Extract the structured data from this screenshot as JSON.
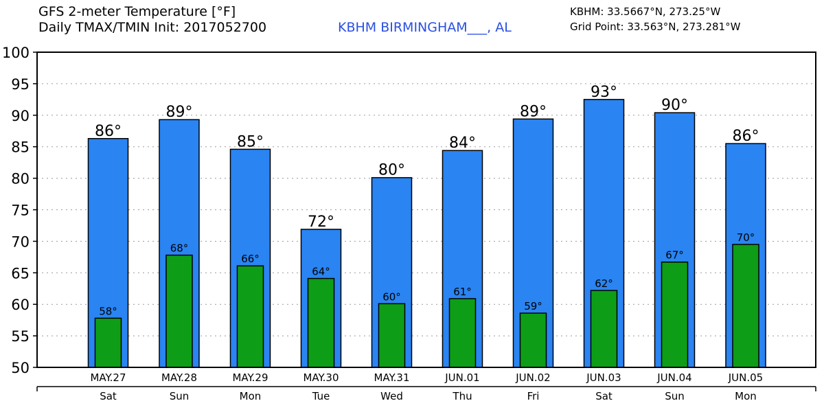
{
  "header": {
    "title_line1": "GFS 2-meter Temperature [°F]",
    "title_line2": "Daily TMAX/TMIN Init: 2017052700",
    "station": "KBHM BIRMINGHAM___, AL",
    "location": "KBHM: 33.5667°N, 273.25°W",
    "grid_point": "Grid Point: 33.563°N, 273.281°W"
  },
  "colors": {
    "tmax_bar": "#2a84f2",
    "tmin_bar": "#0e9d17",
    "grid": "#999999",
    "station_text": "#2a4fe0"
  },
  "chart_data": {
    "type": "bar",
    "ylim": [
      50,
      100
    ],
    "yticks": [
      50,
      55,
      60,
      65,
      70,
      75,
      80,
      85,
      90,
      95,
      100
    ],
    "grid": true,
    "categories": [
      "MAY.27",
      "MAY.28",
      "MAY.29",
      "MAY.30",
      "MAY.31",
      "JUN.01",
      "JUN.02",
      "JUN.03",
      "JUN.04",
      "JUN.05"
    ],
    "weekdays": [
      "Sat",
      "Sun",
      "Mon",
      "Tue",
      "Wed",
      "Thu",
      "Fri",
      "Sat",
      "Sun",
      "Mon"
    ],
    "series": [
      {
        "key": "tmax",
        "values": [
          86.3,
          89.3,
          84.6,
          71.9,
          80.1,
          84.4,
          89.4,
          92.5,
          90.4,
          85.5
        ],
        "labels": [
          "86°",
          "89°",
          "85°",
          "72°",
          "80°",
          "84°",
          "89°",
          "93°",
          "90°",
          "86°"
        ]
      },
      {
        "key": "tmin",
        "values": [
          57.8,
          67.8,
          66.1,
          64.1,
          60.1,
          60.9,
          58.6,
          62.2,
          66.7,
          69.5
        ],
        "labels": [
          "58°",
          "68°",
          "66°",
          "64°",
          "60°",
          "61°",
          "59°",
          "62°",
          "67°",
          "70°"
        ]
      }
    ]
  }
}
